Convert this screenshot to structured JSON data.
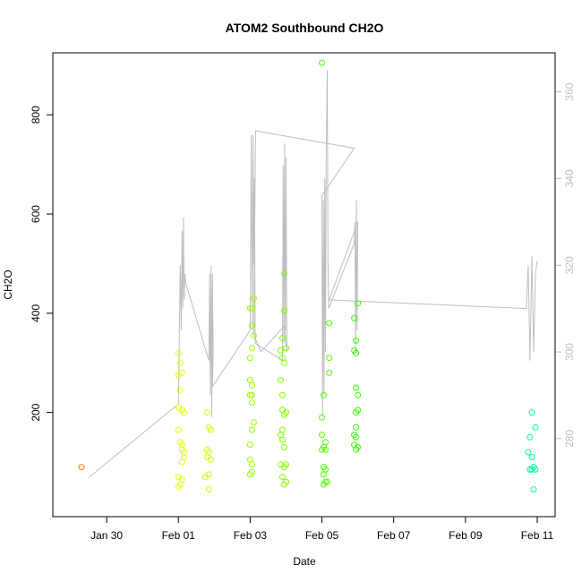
{
  "chart_data": {
    "type": "scatter",
    "title": "ATOM2 Southbound CH2O",
    "xlabel": "Date",
    "ylabel": "CH2O",
    "x_ticks": [
      "Jan 30",
      "Feb 01",
      "Feb 03",
      "Feb 05",
      "Feb 07",
      "Feb 09",
      "Feb 11"
    ],
    "x_tick_days": [
      29,
      31,
      33,
      35,
      37,
      39,
      41
    ],
    "xlim_days": [
      27.5,
      41.5
    ],
    "ylim": [
      -10,
      925
    ],
    "y_ticks": [
      200,
      400,
      600,
      800
    ],
    "y_right_ticks": [
      280,
      300,
      320,
      340,
      360
    ],
    "y_right_lim": [
      262,
      369
    ],
    "colors": {
      "line": "#bebebe",
      "frame": "#000000",
      "right_axis": "#bebebe"
    },
    "points_format": "day-of-2017 (Jan 30 = 29, Feb 01 = 31), CH2O, color",
    "points": [
      [
        28.3,
        90,
        "#ff8000"
      ],
      [
        31.0,
        50,
        "#e6ff00"
      ],
      [
        31.05,
        55,
        "#e6ff00"
      ],
      [
        31.1,
        65,
        "#e6ff00"
      ],
      [
        31.0,
        70,
        "#e6ff00"
      ],
      [
        31.1,
        100,
        "#e6ff00"
      ],
      [
        31.15,
        110,
        "#e6ff00"
      ],
      [
        31.1,
        125,
        "#e6ff00"
      ],
      [
        31.15,
        120,
        "#e6ff00"
      ],
      [
        31.05,
        140,
        "#e6ff00"
      ],
      [
        31.1,
        135,
        "#e6ff00"
      ],
      [
        31.0,
        165,
        "#e6ff00"
      ],
      [
        31.1,
        205,
        "#e6ff00"
      ],
      [
        31.15,
        200,
        "#e6ff00"
      ],
      [
        31.0,
        210,
        "#e6ff00"
      ],
      [
        31.05,
        245,
        "#e6ff00"
      ],
      [
        31.0,
        275,
        "#e6ff00"
      ],
      [
        31.1,
        280,
        "#e6ff00"
      ],
      [
        31.05,
        300,
        "#e6ff00"
      ],
      [
        31.0,
        320,
        "#e6ff00"
      ],
      [
        31.85,
        45,
        "#ccff00"
      ],
      [
        31.75,
        70,
        "#ccff00"
      ],
      [
        31.85,
        75,
        "#ccff00"
      ],
      [
        31.8,
        110,
        "#ccff00"
      ],
      [
        31.9,
        105,
        "#ccff00"
      ],
      [
        31.8,
        125,
        "#ccff00"
      ],
      [
        31.85,
        120,
        "#ccff00"
      ],
      [
        31.9,
        165,
        "#ccff00"
      ],
      [
        31.85,
        170,
        "#ccff00"
      ],
      [
        31.8,
        200,
        "#ccff00"
      ],
      [
        33.0,
        75,
        "#99ff00"
      ],
      [
        33.05,
        80,
        "#99ff00"
      ],
      [
        33.0,
        105,
        "#99ff00"
      ],
      [
        33.05,
        95,
        "#99ff00"
      ],
      [
        33.0,
        135,
        "#99ff00"
      ],
      [
        33.05,
        165,
        "#99ff00"
      ],
      [
        33.1,
        180,
        "#99ff00"
      ],
      [
        33.05,
        220,
        "#99ff00"
      ],
      [
        33.0,
        235,
        "#99ff00"
      ],
      [
        33.05,
        235,
        "#99ff00"
      ],
      [
        33.0,
        265,
        "#99ff00"
      ],
      [
        33.05,
        255,
        "#99ff00"
      ],
      [
        33.0,
        310,
        "#99ff00"
      ],
      [
        33.05,
        330,
        "#99ff00"
      ],
      [
        33.1,
        355,
        "#99ff00"
      ],
      [
        33.05,
        375,
        "#99ff00"
      ],
      [
        33.0,
        410,
        "#99ff00"
      ],
      [
        33.05,
        410,
        "#99ff00"
      ],
      [
        33.1,
        430,
        "#99ff00"
      ],
      [
        33.95,
        55,
        "#80ff00"
      ],
      [
        34.0,
        60,
        "#80ff00"
      ],
      [
        33.9,
        70,
        "#80ff00"
      ],
      [
        33.95,
        90,
        "#80ff00"
      ],
      [
        34.0,
        95,
        "#80ff00"
      ],
      [
        33.85,
        95,
        "#80ff00"
      ],
      [
        33.95,
        130,
        "#80ff00"
      ],
      [
        33.9,
        145,
        "#80ff00"
      ],
      [
        33.85,
        155,
        "#80ff00"
      ],
      [
        33.9,
        165,
        "#80ff00"
      ],
      [
        33.95,
        195,
        "#80ff00"
      ],
      [
        33.9,
        205,
        "#80ff00"
      ],
      [
        34.0,
        200,
        "#80ff00"
      ],
      [
        33.9,
        235,
        "#80ff00"
      ],
      [
        33.85,
        265,
        "#80ff00"
      ],
      [
        33.95,
        300,
        "#80ff00"
      ],
      [
        33.9,
        310,
        "#80ff00"
      ],
      [
        33.85,
        325,
        "#80ff00"
      ],
      [
        34.0,
        330,
        "#80ff00"
      ],
      [
        33.9,
        350,
        "#80ff00"
      ],
      [
        33.95,
        405,
        "#80ff00"
      ],
      [
        33.95,
        480,
        "#80ff00"
      ],
      [
        35.05,
        55,
        "#4dff00"
      ],
      [
        35.1,
        60,
        "#4dff00"
      ],
      [
        35.15,
        60,
        "#4dff00"
      ],
      [
        35.05,
        75,
        "#4dff00"
      ],
      [
        35.1,
        85,
        "#4dff00"
      ],
      [
        35.05,
        90,
        "#4dff00"
      ],
      [
        35.0,
        125,
        "#4dff00"
      ],
      [
        35.1,
        125,
        "#4dff00"
      ],
      [
        35.05,
        130,
        "#4dff00"
      ],
      [
        35.1,
        140,
        "#4dff00"
      ],
      [
        35.0,
        155,
        "#4dff00"
      ],
      [
        35.0,
        190,
        "#4dff00"
      ],
      [
        35.05,
        235,
        "#4dff00"
      ],
      [
        35.2,
        280,
        "#4dff00"
      ],
      [
        35.2,
        310,
        "#4dff00"
      ],
      [
        35.2,
        380,
        "#4dff00"
      ],
      [
        35.0,
        905,
        "#4dff00"
      ],
      [
        35.95,
        125,
        "#33ff00"
      ],
      [
        36.0,
        130,
        "#33ff00"
      ],
      [
        35.9,
        135,
        "#33ff00"
      ],
      [
        35.95,
        150,
        "#33ff00"
      ],
      [
        35.9,
        155,
        "#33ff00"
      ],
      [
        35.95,
        170,
        "#33ff00"
      ],
      [
        35.95,
        200,
        "#33ff00"
      ],
      [
        36.0,
        205,
        "#33ff00"
      ],
      [
        36.0,
        235,
        "#33ff00"
      ],
      [
        35.95,
        250,
        "#33ff00"
      ],
      [
        35.95,
        320,
        "#33ff00"
      ],
      [
        35.9,
        325,
        "#33ff00"
      ],
      [
        35.95,
        345,
        "#33ff00"
      ],
      [
        35.9,
        390,
        "#33ff00"
      ],
      [
        36.0,
        420,
        "#33ff00"
      ],
      [
        40.9,
        45,
        "#00ff99"
      ],
      [
        40.85,
        85,
        "#00ff99"
      ],
      [
        40.8,
        85,
        "#00ff99"
      ],
      [
        40.95,
        85,
        "#00ff99"
      ],
      [
        40.9,
        90,
        "#00ff99"
      ],
      [
        40.85,
        110,
        "#00ff99"
      ],
      [
        40.75,
        120,
        "#00ff99"
      ],
      [
        40.8,
        150,
        "#00ff99"
      ],
      [
        40.95,
        170,
        "#00ff99"
      ],
      [
        40.85,
        200,
        "#00ff99"
      ]
    ],
    "line_series": [
      [
        28.5,
        271
      ],
      [
        31.0,
        288
      ],
      [
        31.02,
        300
      ],
      [
        31.05,
        320
      ],
      [
        31.08,
        305
      ],
      [
        31.1,
        328
      ],
      [
        31.12,
        310
      ],
      [
        31.14,
        331
      ],
      [
        31.16,
        312
      ],
      [
        31.18,
        318
      ],
      [
        31.2,
        316
      ],
      [
        31.85,
        298
      ],
      [
        31.87,
        318
      ],
      [
        31.89,
        290
      ],
      [
        31.91,
        320
      ],
      [
        31.93,
        285
      ],
      [
        31.95,
        318
      ],
      [
        31.97,
        300
      ],
      [
        31.95,
        292
      ],
      [
        33.0,
        305
      ],
      [
        33.03,
        350
      ],
      [
        33.06,
        305
      ],
      [
        33.08,
        350
      ],
      [
        33.1,
        320
      ],
      [
        33.12,
        340
      ],
      [
        33.14,
        302
      ],
      [
        33.9,
        298
      ],
      [
        33.92,
        343
      ],
      [
        33.94,
        302
      ],
      [
        33.96,
        348
      ],
      [
        33.98,
        305
      ],
      [
        34.0,
        345
      ],
      [
        34.02,
        300
      ],
      [
        33.95,
        306
      ],
      [
        33.3,
        300
      ],
      [
        33.1,
        304
      ],
      [
        33.15,
        351
      ],
      [
        35.9,
        347
      ],
      [
        35.0,
        336
      ],
      [
        35.02,
        285
      ],
      [
        35.04,
        335
      ],
      [
        35.06,
        290
      ],
      [
        35.08,
        340
      ],
      [
        35.1,
        300
      ],
      [
        35.12,
        345
      ],
      [
        35.15,
        365
      ],
      [
        35.17,
        320
      ],
      [
        35.19,
        310
      ],
      [
        35.9,
        325
      ],
      [
        35.92,
        330
      ],
      [
        35.94,
        300
      ],
      [
        35.96,
        335
      ],
      [
        35.98,
        305
      ],
      [
        36.0,
        330
      ],
      [
        35.2,
        312
      ],
      [
        40.7,
        310
      ],
      [
        40.75,
        320
      ],
      [
        40.8,
        298
      ],
      [
        40.85,
        322
      ],
      [
        40.9,
        300
      ],
      [
        40.95,
        318
      ],
      [
        41.0,
        321
      ]
    ]
  }
}
